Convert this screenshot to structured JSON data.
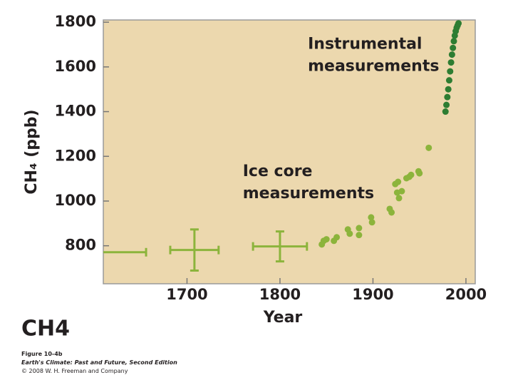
{
  "chart_data": {
    "type": "scatter",
    "ylabel": "CH₄ (ppb)",
    "xlabel": "Year",
    "xlim": [
      1610,
      2010
    ],
    "xticks": [
      1700,
      1800,
      1900,
      2000
    ],
    "ylim": [
      630,
      1810
    ],
    "yticks": [
      800,
      1000,
      1200,
      1400,
      1600,
      1800
    ],
    "annotations": [
      {
        "lines": [
          "Instrumental",
          "measurements"
        ],
        "x": 1830,
        "y": 1700
      },
      {
        "lines": [
          "Ice core",
          "measurements"
        ],
        "x": 1760,
        "y": 1130
      }
    ],
    "series": [
      {
        "color": "#8cb43c",
        "x": [
          1845,
          1847,
          1850,
          1858,
          1861,
          1873,
          1875,
          1885,
          1885,
          1898,
          1899,
          1918,
          1920,
          1924,
          1926,
          1927,
          1928,
          1931,
          1936,
          1939,
          1941,
          1949,
          1950,
          1960
        ],
        "values": [
          806,
          822,
          829,
          822,
          838,
          873,
          854,
          879,
          848,
          927,
          905,
          965,
          949,
          1076,
          1038,
          1086,
          1013,
          1044,
          1102,
          1108,
          1117,
          1133,
          1124,
          1238
        ]
      },
      {
        "color": "#2e7d32",
        "x": [
          1978,
          1979,
          1980,
          1981,
          1982,
          1983,
          1984,
          1985,
          1986,
          1987,
          1988,
          1989,
          1990,
          1991,
          1992
        ],
        "values": [
          1400,
          1430,
          1465,
          1500,
          1540,
          1580,
          1620,
          1655,
          1685,
          1715,
          1740,
          1760,
          1775,
          1785,
          1795
        ]
      }
    ],
    "error_bars": {
      "color": "#8cb43c",
      "points": [
        {
          "x": 1610,
          "y": 771,
          "xerr": 46
        },
        {
          "x": 1708,
          "y": 781,
          "xerr": 26,
          "yerr": 92
        },
        {
          "x": 1800,
          "y": 797,
          "xerr": 29,
          "yerr": 67
        }
      ]
    },
    "footer": {
      "title": "CH4",
      "caption": [
        "Figure 10-4b",
        "Earth's Climate: Past and Future, Second Edition",
        "© 2008 W. H. Freeman and Company"
      ]
    }
  }
}
